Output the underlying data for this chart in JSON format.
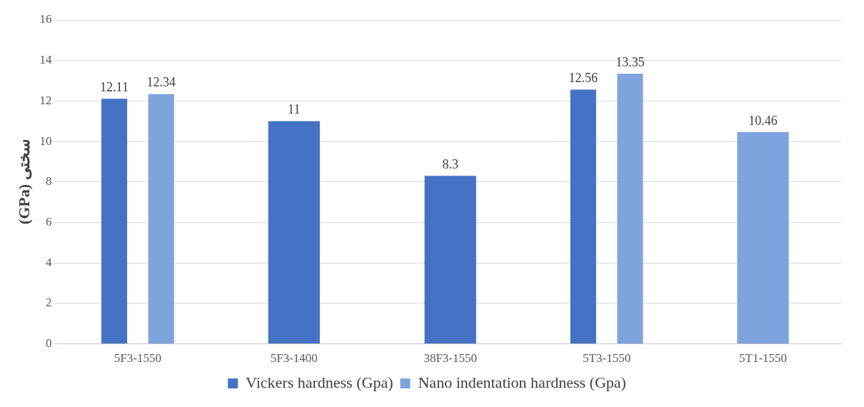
{
  "chart_data": {
    "type": "bar",
    "ylabel": "(GPa) سختی",
    "categories": [
      "5F3-1550",
      "5F3-1400",
      "38F3-1550",
      "5T3-1550",
      "5T1-1550"
    ],
    "series": [
      {
        "name": "Vickers hardness (Gpa)",
        "color": "#4472c4",
        "values": [
          12.11,
          11,
          8.3,
          12.56,
          null
        ]
      },
      {
        "name": "Nano indentation hardness (Gpa)",
        "color": "#7fa3dc",
        "values": [
          12.34,
          null,
          null,
          13.35,
          10.46
        ]
      }
    ],
    "ylim": [
      0,
      16
    ],
    "yticks": [
      0,
      2,
      4,
      6,
      8,
      10,
      12,
      14,
      16
    ],
    "grid": "y",
    "legend": "bottom",
    "data_labels": true
  }
}
